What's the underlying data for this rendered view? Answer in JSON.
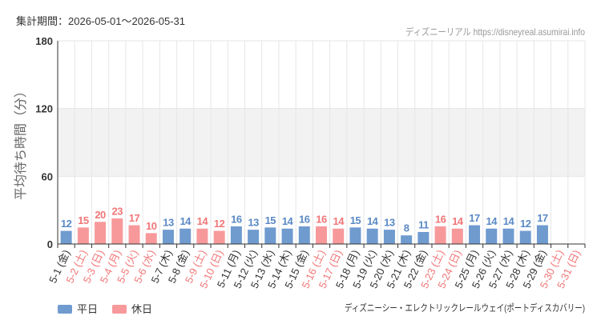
{
  "period_label": "集計期間：2026-05-01～2026-05-31",
  "site_credit": "ディズニーリアル https://disneyreal.asumirai.info",
  "caption": "ディズニーシー・エレクトリックレールウェイ(ポートディスカバリー)",
  "chart_data": {
    "type": "bar",
    "ylabel": "平均待ち時間（分）",
    "ylim": [
      0,
      180
    ],
    "yticks": [
      0,
      60,
      120,
      180
    ],
    "plot_band": [
      60,
      120
    ],
    "grid": true,
    "legend": "bottom-left",
    "categories": [
      "5-1 (金)",
      "5-2 (土)",
      "5-3 (日)",
      "5-4 (月)",
      "5-5 (火)",
      "5-6 (水)",
      "5-7 (木)",
      "5-8 (金)",
      "5-9 (土)",
      "5-10 (日)",
      "5-11 (月)",
      "5-12 (火)",
      "5-13 (水)",
      "5-14 (木)",
      "5-15 (金)",
      "5-16 (土)",
      "5-17 (日)",
      "5-18 (月)",
      "5-19 (火)",
      "5-20 (水)",
      "5-21 (木)",
      "5-22 (金)",
      "5-23 (土)",
      "5-24 (日)",
      "5-25 (月)",
      "5-26 (火)",
      "5-27 (水)",
      "5-28 (木)",
      "5-29 (金)",
      "5-30 (土)",
      "5-31 (日)"
    ],
    "values": [
      12,
      15,
      20,
      23,
      17,
      10,
      13,
      14,
      14,
      12,
      16,
      13,
      15,
      14,
      16,
      16,
      14,
      15,
      14,
      13,
      8,
      11,
      16,
      14,
      17,
      14,
      14,
      12,
      17,
      null,
      null
    ],
    "holiday": [
      false,
      true,
      true,
      true,
      true,
      true,
      false,
      false,
      true,
      true,
      false,
      false,
      false,
      false,
      false,
      true,
      true,
      false,
      false,
      false,
      false,
      false,
      true,
      true,
      false,
      false,
      false,
      false,
      false,
      true,
      true
    ],
    "series": [
      {
        "name": "平日",
        "color": "#6f9bcf",
        "label_color": "#5a89c4"
      },
      {
        "name": "休日",
        "color": "#f7999b",
        "label_color": "#f17677"
      }
    ]
  }
}
